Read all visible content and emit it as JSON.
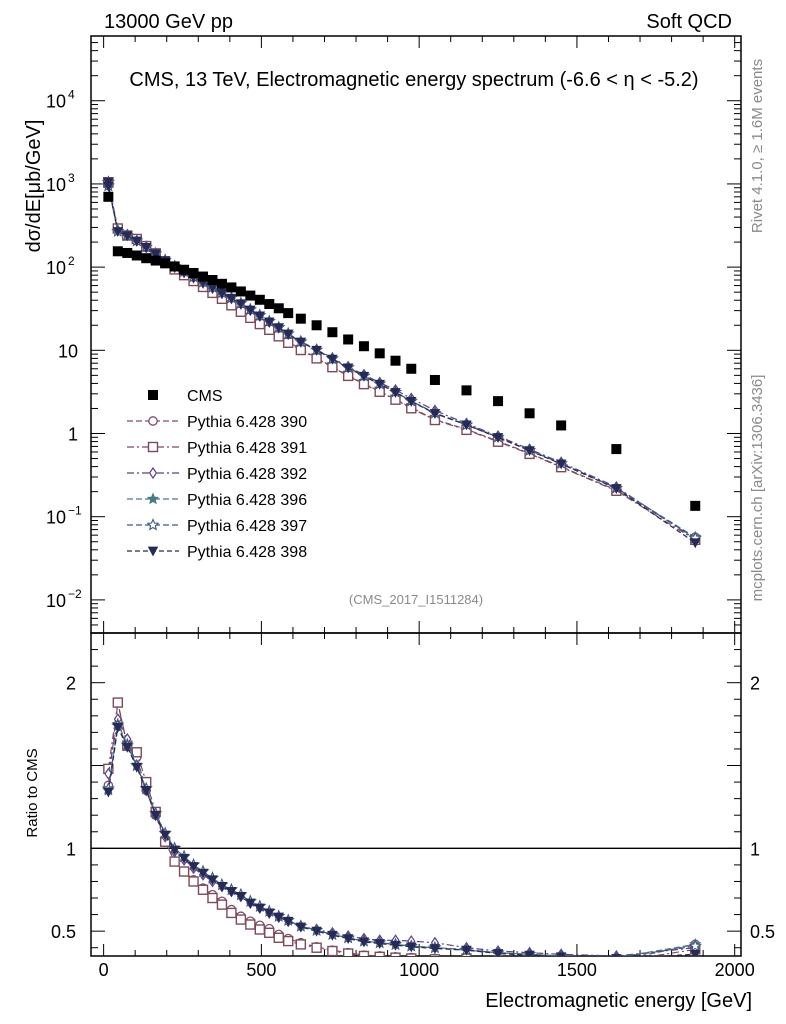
{
  "header": {
    "beam": "13000 GeV pp",
    "category": "Soft QCD",
    "plot_title": "CMS, 13 TeV, Electromagnetic energy spectrum (-6.6 < η < -5.2)",
    "analysis_id": "(CMS_2017_I1511284)",
    "side_label_top": "Rivet 4.1.0, ≥ 1.6M events",
    "side_label_bottom": "mcplots.cern.ch [arXiv:1306.3436]"
  },
  "chart_data": {
    "type": "scatter",
    "title": "CMS, 13 TeV, Electromagnetic energy spectrum (-6.6 < η < -5.2)",
    "xlabel": "Electromagnetic energy [GeV]",
    "ylabel": "dσ/dE[μb/GeV]",
    "ratio_ylabel": "Ratio to CMS",
    "xlim": [
      -40,
      2020
    ],
    "ylim": [
      0.004,
      60000
    ],
    "yscale": "log",
    "ratio_ylim": [
      0.35,
      2.3
    ],
    "x_ticks": [
      0,
      500,
      1000,
      1500,
      2000
    ],
    "x_tick_labels": [
      "0",
      "500",
      "1000",
      "1500",
      "2000"
    ],
    "y_ticks": [
      0.01,
      0.1,
      1,
      10,
      100,
      1000,
      10000
    ],
    "y_tick_labels": [
      {
        "base": "10",
        "exp": "−2"
      },
      {
        "base": "10",
        "exp": "−1"
      },
      {
        "base": "1",
        "exp": ""
      },
      {
        "base": "10",
        "exp": ""
      },
      {
        "base": "10",
        "exp": "2"
      },
      {
        "base": "10",
        "exp": "3"
      },
      {
        "base": "10",
        "exp": "4"
      }
    ],
    "ratio_ticks": [
      0.5,
      1,
      2
    ],
    "ratio_tick_labels": [
      "0.5",
      "1",
      "2"
    ],
    "legend_position": "middle-left",
    "data": {
      "name": "CMS",
      "color": "#000000",
      "x": [
        15,
        45,
        75,
        105,
        135,
        165,
        195,
        225,
        255,
        285,
        315,
        345,
        375,
        405,
        435,
        465,
        495,
        525,
        555,
        585,
        625,
        675,
        725,
        775,
        825,
        875,
        925,
        975,
        1050,
        1150,
        1250,
        1350,
        1450,
        1625,
        1875
      ],
      "y": [
        700,
        155,
        148,
        138,
        128,
        120,
        111,
        102,
        93,
        85,
        77,
        70,
        63,
        57,
        51,
        45.5,
        40.5,
        36,
        32,
        28,
        24,
        20,
        16.5,
        13.5,
        11.2,
        9.2,
        7.5,
        6.0,
        4.4,
        3.3,
        2.45,
        1.75,
        1.25,
        0.65,
        0.135
      ]
    },
    "series": [
      {
        "name": "Pythia 6.428 390",
        "marker": "circle",
        "color": "#7d4b74",
        "dash": "6,3",
        "first": 1050,
        "r": [
          1.38,
          1.88,
          1.62,
          1.55,
          1.35,
          1.2,
          1.04,
          0.92,
          0.86,
          0.81,
          0.76,
          0.72,
          0.68,
          0.63,
          0.59,
          0.56,
          0.535,
          0.515,
          0.48,
          0.455,
          0.43,
          0.405,
          0.385,
          0.37,
          0.355,
          0.35,
          0.345,
          0.34,
          0.335,
          0.34,
          0.33,
          0.33,
          0.32,
          0.32,
          0.42
        ]
      },
      {
        "name": "Pythia 6.428 391",
        "marker": "square",
        "color": "#7d4b58",
        "dash": "7,3,2,3",
        "first": 1050,
        "r": [
          1.48,
          1.88,
          1.62,
          1.58,
          1.4,
          1.22,
          1.04,
          0.92,
          0.86,
          0.8,
          0.75,
          0.7,
          0.66,
          0.61,
          0.57,
          0.54,
          0.51,
          0.49,
          0.46,
          0.44,
          0.42,
          0.4,
          0.38,
          0.365,
          0.35,
          0.345,
          0.34,
          0.335,
          0.33,
          0.335,
          0.325,
          0.325,
          0.315,
          0.315,
          0.39
        ]
      },
      {
        "name": "Pythia 6.428 392",
        "marker": "diamond",
        "color": "#5e3f88",
        "dash": "7,3,2,3",
        "first": 1050,
        "r": [
          1.45,
          1.78,
          1.66,
          1.5,
          1.35,
          1.2,
          1.07,
          0.98,
          0.93,
          0.88,
          0.84,
          0.8,
          0.77,
          0.74,
          0.71,
          0.67,
          0.64,
          0.61,
          0.585,
          0.56,
          0.53,
          0.51,
          0.49,
          0.47,
          0.455,
          0.445,
          0.445,
          0.44,
          0.43,
          0.4,
          0.38,
          0.37,
          0.36,
          0.35,
          0.4
        ]
      },
      {
        "name": "Pythia 6.428 396",
        "marker": "star",
        "color": "#4a7a86",
        "dash": "6,3",
        "first": 1050,
        "r": [
          1.35,
          1.75,
          1.63,
          1.5,
          1.36,
          1.21,
          1.09,
          1.0,
          0.95,
          0.9,
          0.86,
          0.82,
          0.78,
          0.75,
          0.72,
          0.68,
          0.65,
          0.62,
          0.59,
          0.565,
          0.53,
          0.505,
          0.48,
          0.46,
          0.44,
          0.43,
          0.42,
          0.41,
          0.4,
          0.39,
          0.37,
          0.36,
          0.35,
          0.34,
          0.42
        ]
      },
      {
        "name": "Pythia 6.428 397",
        "marker": "star-open",
        "color": "#3d5b82",
        "dash": "6,3",
        "first": 1050,
        "r": [
          1.36,
          1.74,
          1.62,
          1.5,
          1.36,
          1.21,
          1.09,
          1.0,
          0.95,
          0.9,
          0.86,
          0.82,
          0.78,
          0.75,
          0.72,
          0.68,
          0.65,
          0.62,
          0.59,
          0.565,
          0.53,
          0.505,
          0.48,
          0.46,
          0.44,
          0.43,
          0.42,
          0.41,
          0.4,
          0.385,
          0.37,
          0.36,
          0.35,
          0.34,
          0.41
        ]
      },
      {
        "name": "Pythia 6.428 398",
        "marker": "triangle-down",
        "color": "#262a55",
        "dash": "5,3",
        "first": 1050,
        "r": [
          1.34,
          1.73,
          1.61,
          1.49,
          1.35,
          1.2,
          1.08,
          0.99,
          0.94,
          0.89,
          0.85,
          0.81,
          0.77,
          0.74,
          0.71,
          0.67,
          0.64,
          0.61,
          0.585,
          0.56,
          0.525,
          0.5,
          0.475,
          0.455,
          0.435,
          0.425,
          0.415,
          0.405,
          0.395,
          0.385,
          0.365,
          0.355,
          0.345,
          0.335,
          0.36
        ]
      }
    ]
  }
}
